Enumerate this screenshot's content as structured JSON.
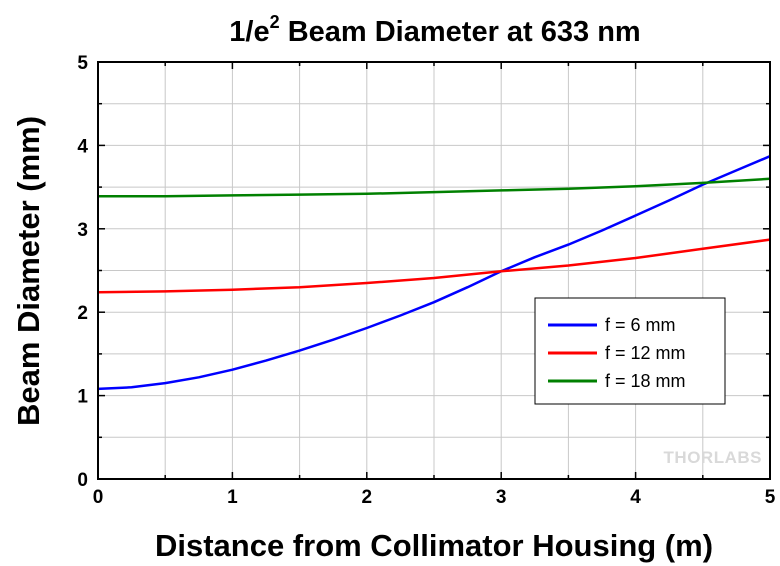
{
  "chart_data": {
    "type": "line",
    "title": "1/e",
    "title_superscript": "2",
    "title_rest": " Beam Diameter at 633 nm",
    "xlabel": "Distance from Collimator Housing (m)",
    "ylabel": "Beam Diameter (mm)",
    "xlim": [
      0,
      5
    ],
    "ylim": [
      0,
      5
    ],
    "x_ticks": [
      "0",
      "1",
      "2",
      "3",
      "4",
      "5"
    ],
    "y_ticks": [
      "0",
      "1",
      "2",
      "3",
      "4",
      "5"
    ],
    "grid": true,
    "legend_position": "center-right",
    "watermark": "THORLABS",
    "series": [
      {
        "name": "f = 6 mm",
        "color": "#0000ff",
        "x": [
          0,
          0.25,
          0.5,
          0.75,
          1,
          1.25,
          1.5,
          1.75,
          2,
          2.25,
          2.5,
          2.75,
          3,
          3.25,
          3.5,
          3.75,
          4,
          4.25,
          4.5,
          4.75,
          5
        ],
        "y": [
          1.08,
          1.1,
          1.15,
          1.22,
          1.31,
          1.42,
          1.54,
          1.67,
          1.81,
          1.96,
          2.12,
          2.3,
          2.49,
          2.66,
          2.81,
          2.98,
          3.16,
          3.34,
          3.53,
          3.7,
          3.87
        ]
      },
      {
        "name": "f = 12 mm",
        "color": "#ff0000",
        "x": [
          0,
          0.5,
          1,
          1.5,
          2,
          2.5,
          3,
          3.5,
          4,
          4.5,
          5
        ],
        "y": [
          2.24,
          2.25,
          2.27,
          2.3,
          2.35,
          2.41,
          2.49,
          2.56,
          2.65,
          2.76,
          2.87
        ]
      },
      {
        "name": "f = 18 mm",
        "color": "#008000",
        "x": [
          0,
          0.5,
          1,
          1.5,
          2,
          2.5,
          3,
          3.5,
          4,
          4.5,
          5
        ],
        "y": [
          3.39,
          3.39,
          3.4,
          3.41,
          3.42,
          3.44,
          3.46,
          3.48,
          3.51,
          3.55,
          3.6
        ]
      }
    ]
  }
}
